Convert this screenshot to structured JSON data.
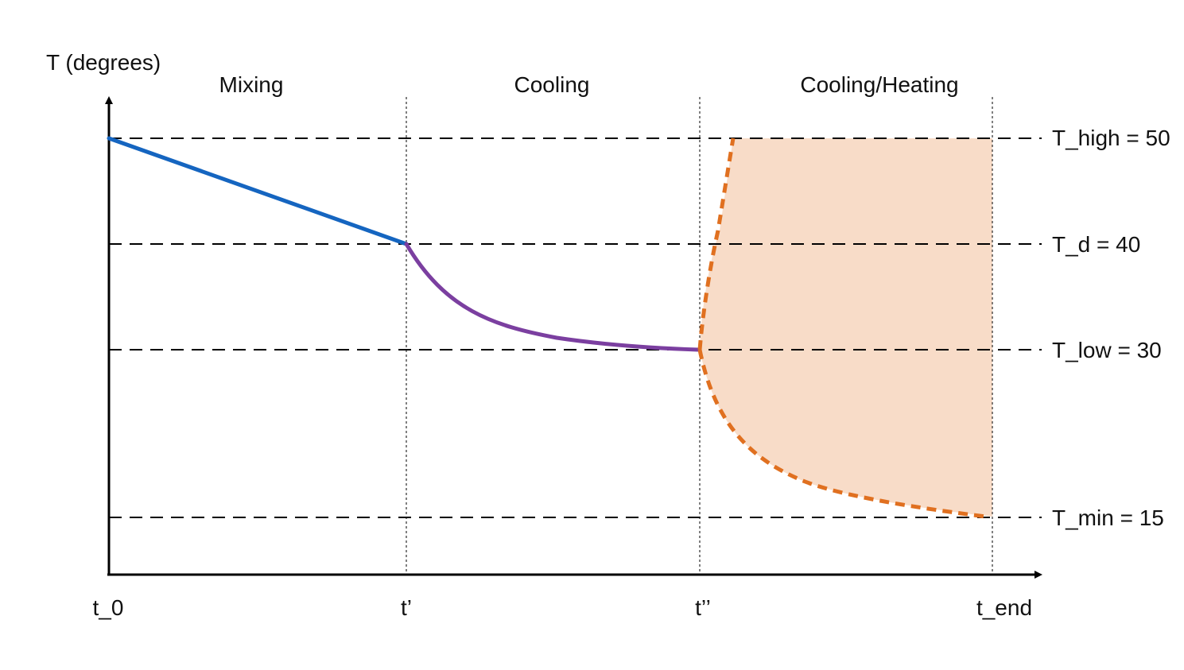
{
  "diagram": {
    "y_axis_label": "T (degrees)",
    "phases": [
      {
        "label": "Mixing"
      },
      {
        "label": "Cooling"
      },
      {
        "label": "Cooling/Heating"
      }
    ],
    "time_labels": [
      {
        "label": "t_0"
      },
      {
        "label": "t’"
      },
      {
        "label": "t’’"
      },
      {
        "label": "t_end"
      }
    ],
    "reference_lines": [
      {
        "label": "T_high = 50",
        "value": 50
      },
      {
        "label": "T_d = 40",
        "value": 40
      },
      {
        "label": "T_low = 30",
        "value": 30
      },
      {
        "label": "T_min = 15",
        "value": 15
      }
    ],
    "colors": {
      "mixing": "#1565c0",
      "cooling": "#7b3fa0",
      "heating_boundary": "#e07020",
      "heating_fill": "#f8dcc8"
    }
  }
}
